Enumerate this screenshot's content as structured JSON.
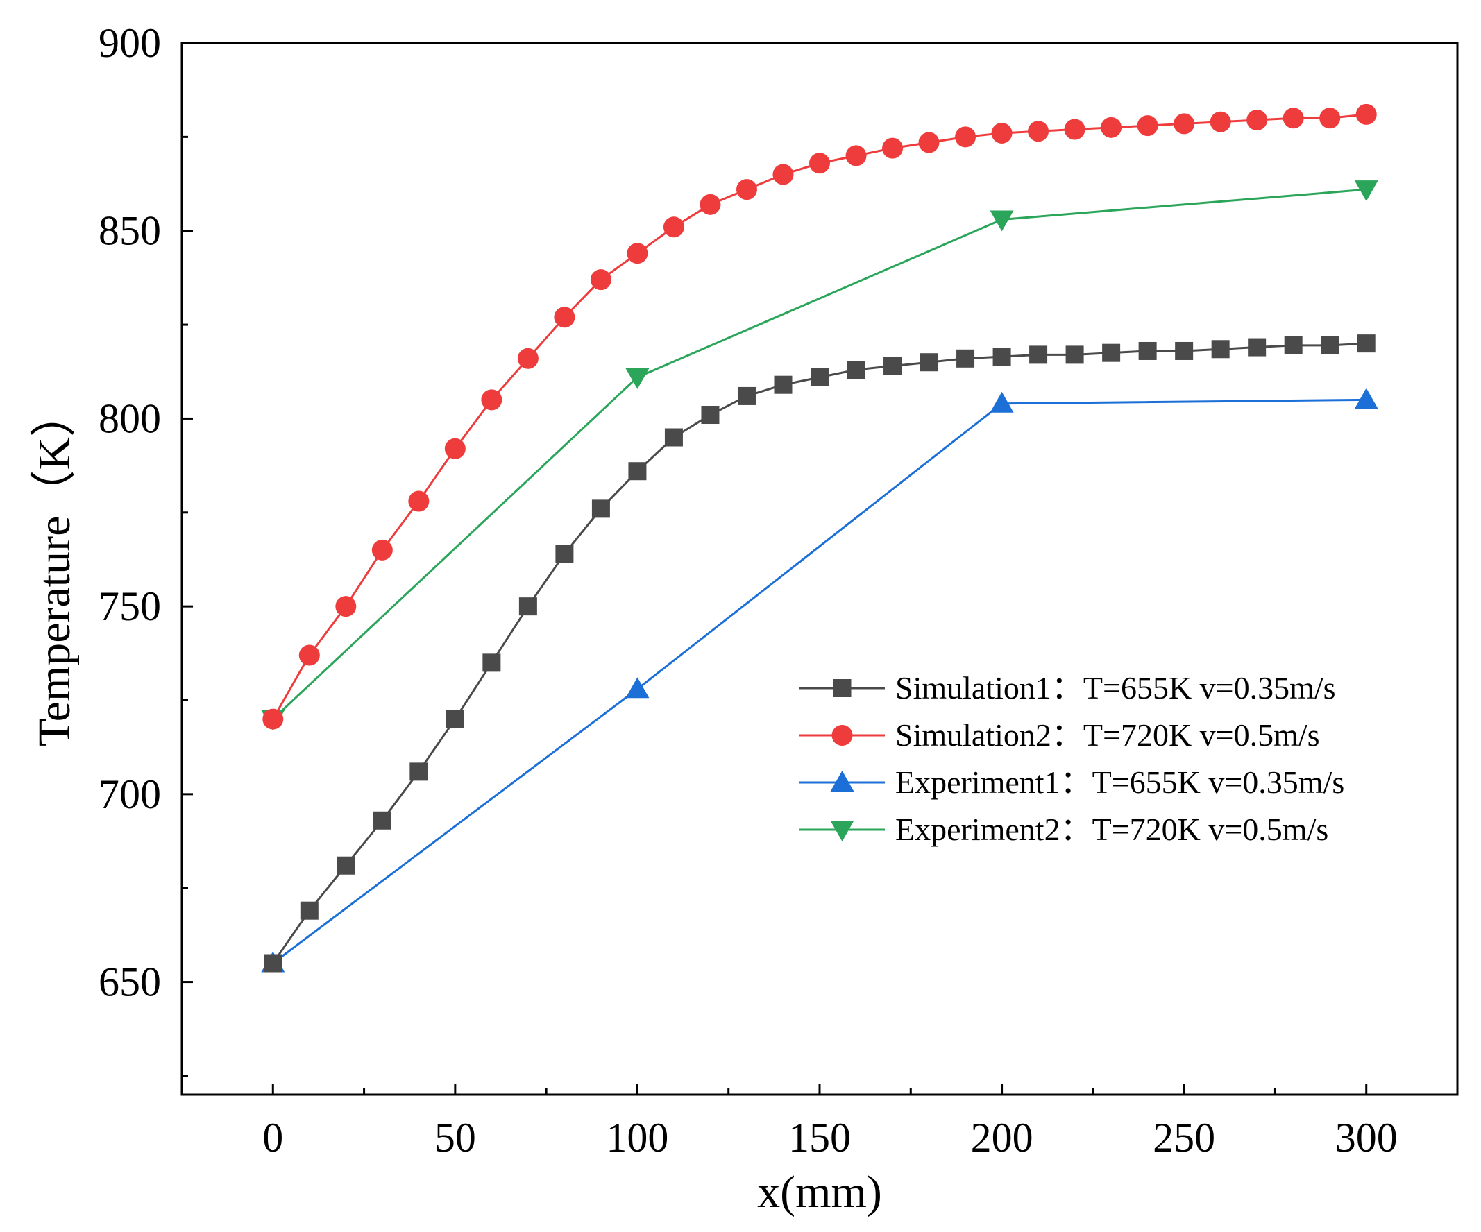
{
  "chart_data": {
    "type": "line",
    "title": "",
    "xlabel": "x(mm)",
    "ylabel": "Temperature（K）",
    "xlim": [
      -25,
      325
    ],
    "ylim": [
      620,
      900
    ],
    "xticks": [
      0,
      50,
      100,
      150,
      200,
      250,
      300
    ],
    "yticks": [
      650,
      700,
      750,
      800,
      850,
      900
    ],
    "grid": false,
    "legend_position": "center-right",
    "series": [
      {
        "name": "Simulation1：T=655K v=0.35m/s",
        "color": "#4a4a4a",
        "marker": "square",
        "x": [
          0,
          10,
          20,
          30,
          40,
          50,
          60,
          70,
          80,
          90,
          100,
          110,
          120,
          130,
          140,
          150,
          160,
          170,
          180,
          190,
          200,
          210,
          220,
          230,
          240,
          250,
          260,
          270,
          280,
          290,
          300
        ],
        "y": [
          655,
          669,
          681,
          693,
          706,
          720,
          735,
          750,
          764,
          776,
          786,
          795,
          801,
          806,
          809,
          811,
          813,
          814,
          815,
          816,
          816.5,
          817,
          817,
          817.5,
          818,
          818,
          818.5,
          819,
          819.5,
          819.5,
          820
        ]
      },
      {
        "name": "Simulation2：T=720K v=0.5m/s",
        "color": "#ee3b3b",
        "marker": "circle",
        "x": [
          0,
          10,
          20,
          30,
          40,
          50,
          60,
          70,
          80,
          90,
          100,
          110,
          120,
          130,
          140,
          150,
          160,
          170,
          180,
          190,
          200,
          210,
          220,
          230,
          240,
          250,
          260,
          270,
          280,
          290,
          300
        ],
        "y": [
          720,
          737,
          750,
          765,
          778,
          792,
          805,
          816,
          827,
          837,
          844,
          851,
          857,
          861,
          865,
          868,
          870,
          872,
          873.5,
          875,
          876,
          876.5,
          877,
          877.5,
          878,
          878.5,
          879,
          879.5,
          880,
          880,
          881
        ]
      },
      {
        "name": "Experiment1：T=655K v=0.35m/s",
        "color": "#1c6fd6",
        "marker": "triangle-up",
        "x": [
          0,
          100,
          200,
          300
        ],
        "y": [
          655,
          728,
          804,
          805
        ]
      },
      {
        "name": "Experiment2：T=720K v=0.5m/s",
        "color": "#2aa55a",
        "marker": "triangle-down",
        "x": [
          0,
          100,
          200,
          300
        ],
        "y": [
          720,
          811,
          853,
          861
        ]
      }
    ]
  }
}
